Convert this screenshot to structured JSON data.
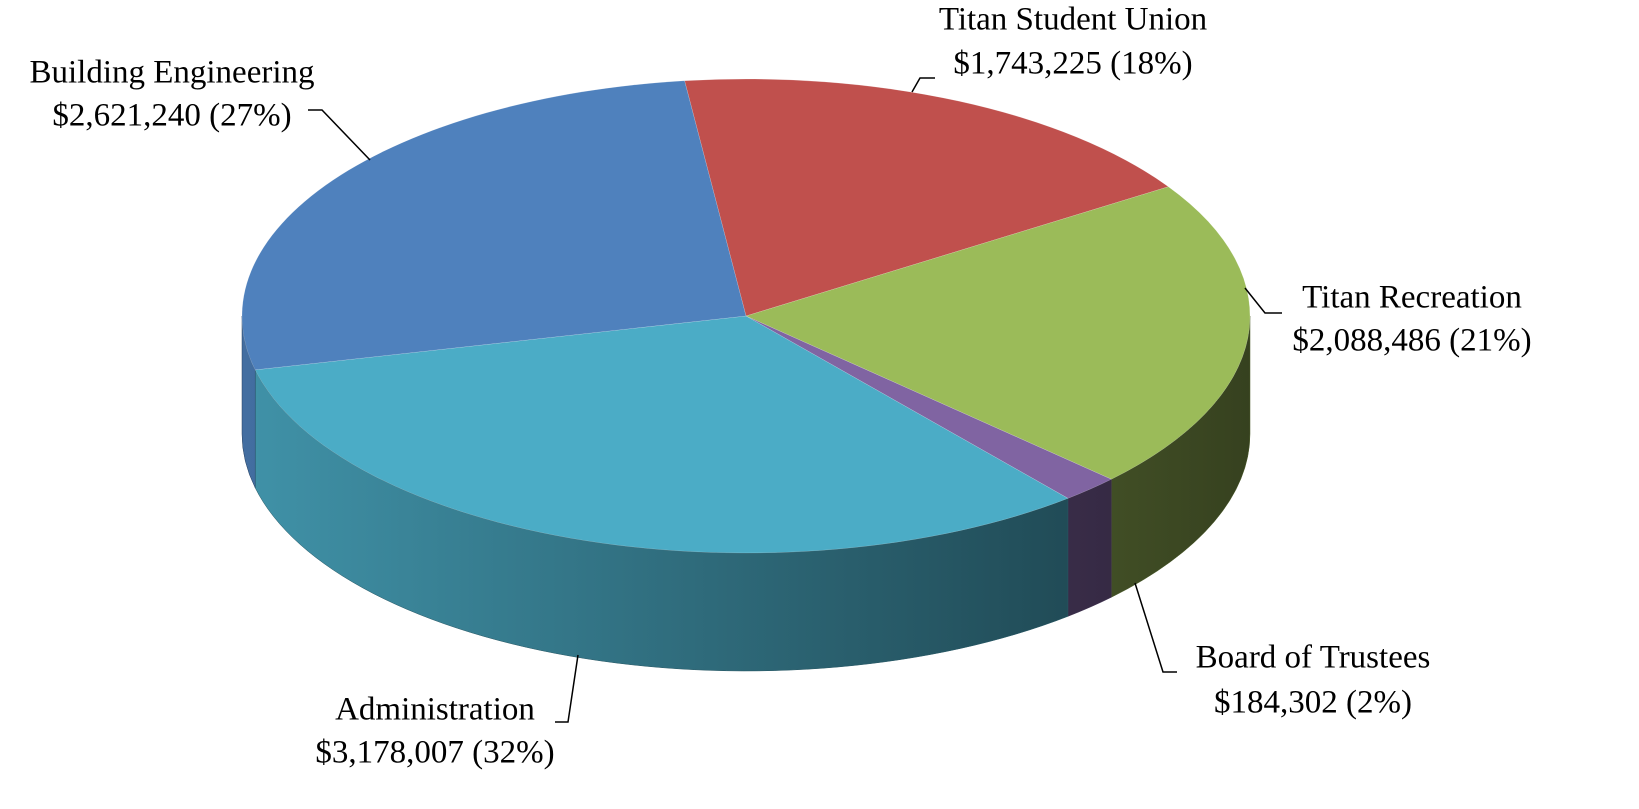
{
  "chart_data": {
    "type": "pie",
    "categories": [
      "Titan Student Union",
      "Titan Recreation",
      "Board of Trustees",
      "Administration",
      "Building Engineering"
    ],
    "values": [
      1743225,
      2088486,
      184302,
      3178007,
      2621240
    ],
    "value_labels": [
      "$1,743,225 (18%)",
      "$2,088,486 (21%)",
      "$184,302 (2%)",
      "$3,178,007 (32%)",
      "$2,621,240 (27%)"
    ],
    "colors": [
      "#c0504d",
      "#9bbb59",
      "#8064a2",
      "#4bacc6",
      "#4f81bd"
    ]
  }
}
